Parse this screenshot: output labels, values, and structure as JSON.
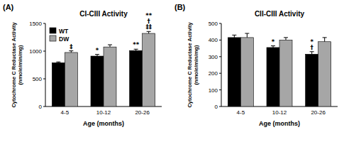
{
  "chart_data": [
    {
      "type": "bar",
      "label": "(A)",
      "title": "CI-CIII Activity",
      "x_label": "Age (months)",
      "y_label": [
        "Cytochrome C Reductase Activity",
        "(nmole/min/mg)"
      ],
      "categories": [
        "4-5",
        "10-12",
        "20-26"
      ],
      "series": [
        {
          "name": "WT",
          "color": "#000000",
          "values": [
            790,
            910,
            1010
          ],
          "errors": [
            15,
            30,
            25
          ],
          "annotations": [
            [],
            [
              "*"
            ],
            [
              "**"
            ]
          ]
        },
        {
          "name": "DW",
          "color": "#a6a6a6",
          "values": [
            975,
            1075,
            1320
          ],
          "errors": [
            30,
            40,
            35
          ],
          "annotations": [
            [
              "‡"
            ],
            [],
            [
              "**",
              "†",
              "‡‡"
            ]
          ]
        }
      ],
      "ylim": [
        0,
        1500
      ],
      "yticks": [
        0,
        500,
        1000,
        1500
      ],
      "legend": "upper left"
    },
    {
      "type": "bar",
      "label": "(B)",
      "title": "CII-CIII Activity",
      "x_label": "Age (months)",
      "y_label": [
        "Cytochrome C Reductase Activity",
        "(nmole/min/mg)"
      ],
      "categories": [
        "4-5",
        "10-12",
        "20-26"
      ],
      "series": [
        {
          "color": "#000000",
          "values": [
            415,
            355,
            315
          ],
          "errors": [
            15,
            10,
            15
          ],
          "annotations": [
            [],
            [
              "*"
            ],
            [
              "*",
              "†"
            ]
          ]
        },
        {
          "color": "#a6a6a6",
          "values": [
            415,
            400,
            390
          ],
          "errors": [
            25,
            15,
            25
          ],
          "annotations": [
            [],
            [],
            []
          ]
        }
      ],
      "ylim": [
        0,
        500
      ],
      "yticks": [
        0,
        100,
        200,
        300,
        400,
        500
      ]
    }
  ]
}
